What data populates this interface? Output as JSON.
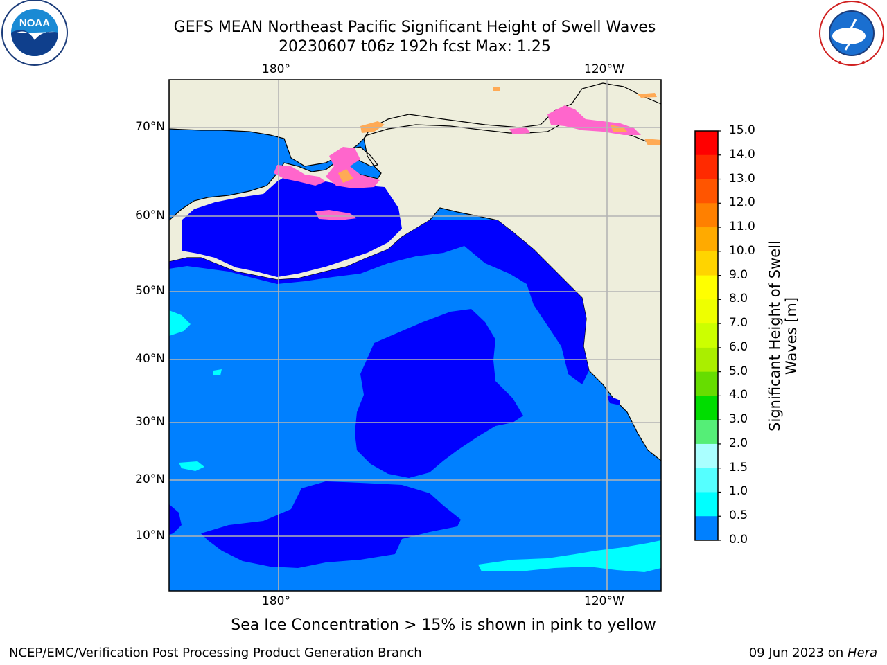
{
  "title": {
    "line1": "GEFS MEAN Northeast Pacific Significant Height of Swell Waves",
    "line2": "20230607 t06z 192h fcst   Max: 1.25"
  },
  "logos": {
    "left": "NOAA",
    "left_ring_text": "NATIONAL OCEANIC AND ATMOSPHERIC ADMINISTRATION · U.S. DEPARTMENT OF COMMERCE",
    "right_ring_text": "NATIONAL WEATHER SERVICE"
  },
  "map": {
    "lon_labels_top": [
      "180°",
      "120°W"
    ],
    "lon_labels_bottom": [
      "180°",
      "120°W"
    ],
    "lat_labels": [
      "70°N",
      "60°N",
      "50°N",
      "40°N",
      "30°N",
      "20°N",
      "10°N"
    ],
    "colors": {
      "land": "#eeeedc",
      "ocean_low": "#0000ff",
      "ocean_mid": "#0080ff",
      "ocean_cyan": "#00ffff",
      "ice_pink": "#ff66cc",
      "ice_orange": "#ffaa55",
      "grid": "#b4b4b4"
    }
  },
  "colorbar": {
    "label": "Significant Height of Swell Waves [m]",
    "ticks": [
      "15.0",
      "14.0",
      "13.0",
      "12.0",
      "11.0",
      "10.0",
      "9.0",
      "8.0",
      "7.0",
      "6.0",
      "5.0",
      "4.0",
      "3.0",
      "2.0",
      "1.5",
      "1.0",
      "0.5",
      "0.0"
    ],
    "colors": [
      "#ff0000",
      "#ff2a00",
      "#ff5500",
      "#ff8000",
      "#ffaa00",
      "#ffd400",
      "#ffff00",
      "#eeff00",
      "#ccff00",
      "#aaee00",
      "#66dd00",
      "#00dd00",
      "#55ee77",
      "#aaffff",
      "#55ffff",
      "#00ffff",
      "#0080ff",
      "#0000ff"
    ]
  },
  "note": "Sea Ice Concentration > 15% is shown in pink to yellow",
  "footer": {
    "left": "NCEP/EMC/Verification Post Processing Product Generation Branch",
    "right_date": "09 Jun 2023 on ",
    "right_host": "Hera"
  }
}
